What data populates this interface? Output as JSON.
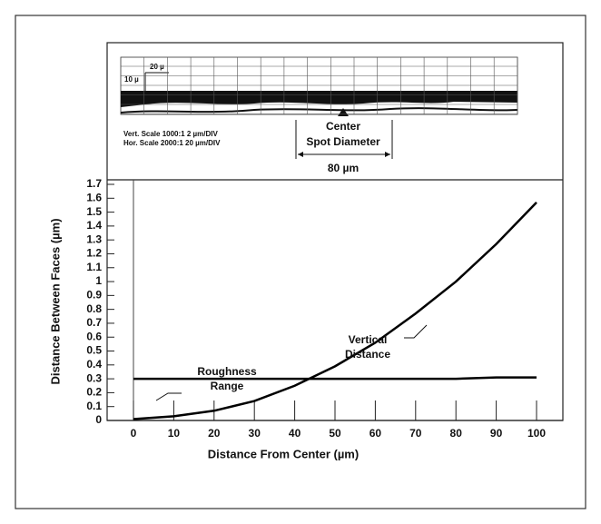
{
  "chart_data": {
    "type": "line",
    "x_label": "Distance From Center (µm)",
    "y_label": "Distance Between Faces (µm)",
    "x": [
      0,
      10,
      20,
      30,
      40,
      50,
      60,
      70,
      80,
      90,
      100
    ],
    "series": [
      {
        "color": "#000000",
        "values": [
          0.01,
          0.03,
          0.07,
          0.14,
          0.25,
          0.39,
          0.56,
          0.77,
          1.0,
          1.27,
          1.57
        ]
      },
      {
        "color": "#000000",
        "values": [
          0.3,
          0.3,
          0.3,
          0.3,
          0.3,
          0.3,
          0.3,
          0.3,
          0.3,
          0.31,
          0.31
        ]
      }
    ],
    "xlim": [
      0,
      100
    ],
    "ylim": [
      0,
      1.7
    ],
    "xticks": [
      0,
      10,
      20,
      30,
      40,
      50,
      60,
      70,
      80,
      90,
      100
    ],
    "yticks": [
      0,
      0.1,
      0.2,
      0.3,
      0.4,
      0.5,
      0.6,
      0.7,
      0.8,
      0.9,
      1,
      1.1,
      1.2,
      1.3,
      1.4,
      1.5,
      1.6,
      1.7
    ],
    "annotations": [
      {
        "lines": [
          "Vertical",
          "Distance"
        ]
      },
      {
        "lines": [
          "Roughness",
          "Range"
        ]
      }
    ],
    "inset": {
      "h_div": "20 µ",
      "v_div": "10 µ",
      "vert_scale": "Vert. Scale 1000:1 2 µm/DIV",
      "hor_scale": "Hor. Scale 2000:1 20 µm/DIV",
      "center": "Center",
      "spot": "Spot Diameter",
      "spot_size": "80 µm"
    }
  }
}
